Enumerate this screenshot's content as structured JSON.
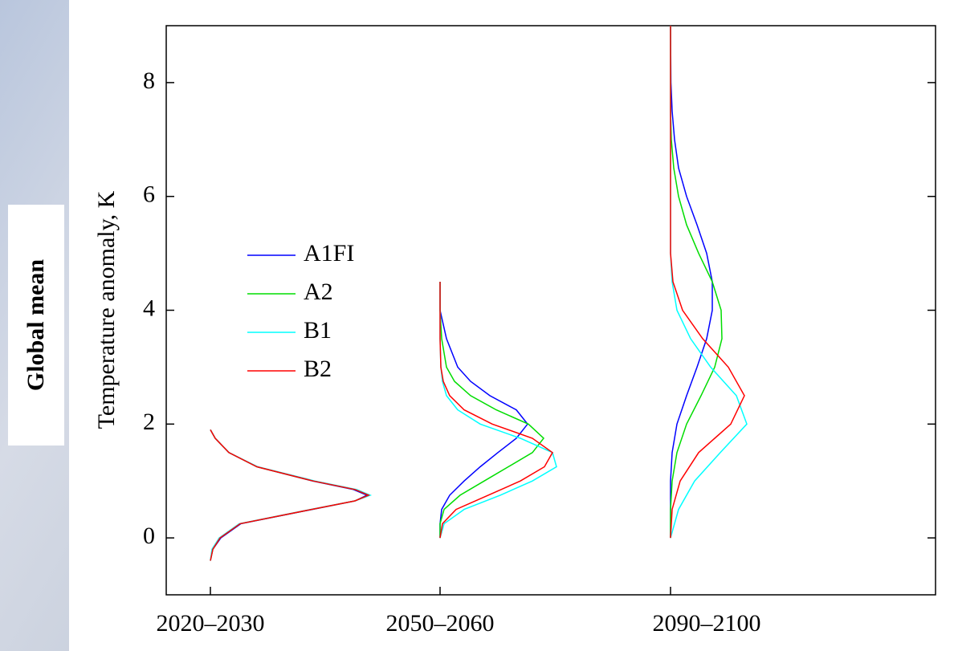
{
  "side_label": "Global mean",
  "chart_data": {
    "type": "density",
    "ylabel": "Temperature anomaly, K",
    "ylim": [
      -1,
      9
    ],
    "yticks": [
      0,
      2,
      4,
      6,
      8
    ],
    "categories": [
      "2020–2030",
      "2050–2060",
      "2090–2100"
    ],
    "legend": "upper left",
    "series": [
      {
        "name": "A1FI",
        "color": "#0000ff"
      },
      {
        "name": "A2",
        "color": "#00dd00"
      },
      {
        "name": "B1",
        "color": "#00ffff"
      },
      {
        "name": "B2",
        "color": "#ff0000"
      }
    ],
    "groups": [
      {
        "y": [
          -0.4,
          -0.2,
          0,
          0.25,
          0.5,
          0.65,
          0.75,
          0.85,
          1.0,
          1.25,
          1.5,
          1.75,
          1.9
        ],
        "values": [
          [
            0,
            0.03,
            0.13,
            0.38,
            1.27,
            1.8,
            1.95,
            1.78,
            1.27,
            0.58,
            0.23,
            0.06,
            0
          ],
          [
            0,
            0.03,
            0.12,
            0.37,
            1.26,
            1.8,
            1.97,
            1.8,
            1.28,
            0.58,
            0.23,
            0.06,
            0
          ],
          [
            0,
            0.02,
            0.11,
            0.36,
            1.25,
            1.8,
            1.99,
            1.82,
            1.3,
            0.59,
            0.23,
            0.06,
            0
          ],
          [
            0,
            0.03,
            0.12,
            0.37,
            1.26,
            1.8,
            1.97,
            1.8,
            1.28,
            0.58,
            0.23,
            0.06,
            0
          ]
        ]
      },
      {
        "y": [
          0,
          0.25,
          0.5,
          0.75,
          1.0,
          1.25,
          1.5,
          1.75,
          2.0,
          2.25,
          2.5,
          2.75,
          3.0,
          3.5,
          4.0,
          4.5
        ],
        "values": [
          [
            0,
            0,
            0.02,
            0.12,
            0.3,
            0.5,
            0.72,
            0.95,
            1.09,
            0.95,
            0.62,
            0.38,
            0.22,
            0.08,
            0,
            0
          ],
          [
            0,
            0,
            0.05,
            0.25,
            0.55,
            0.85,
            1.15,
            1.29,
            1.1,
            0.7,
            0.38,
            0.18,
            0.08,
            0.02,
            0,
            0
          ],
          [
            0,
            0.05,
            0.3,
            0.75,
            1.15,
            1.45,
            1.4,
            1.0,
            0.5,
            0.22,
            0.08,
            0.03,
            0.01,
            0,
            0,
            0
          ],
          [
            0,
            0.03,
            0.2,
            0.6,
            1.0,
            1.3,
            1.4,
            1.15,
            0.65,
            0.3,
            0.12,
            0.04,
            0.01,
            0,
            0,
            0
          ]
        ]
      },
      {
        "y": [
          0,
          0.5,
          1.0,
          1.5,
          2.0,
          2.5,
          3.0,
          3.5,
          4.0,
          4.5,
          5.0,
          5.5,
          6.0,
          6.5,
          7.0,
          7.5,
          8.0,
          9.0
        ],
        "values": [
          [
            0,
            0,
            0,
            0.02,
            0.08,
            0.2,
            0.33,
            0.45,
            0.52,
            0.52,
            0.45,
            0.33,
            0.2,
            0.1,
            0.05,
            0.02,
            0.005,
            0
          ],
          [
            0,
            0,
            0.02,
            0.08,
            0.2,
            0.38,
            0.55,
            0.64,
            0.63,
            0.52,
            0.35,
            0.2,
            0.1,
            0.04,
            0.01,
            0,
            0,
            0
          ],
          [
            0,
            0.1,
            0.3,
            0.62,
            0.95,
            0.82,
            0.5,
            0.25,
            0.08,
            0.02,
            0,
            0,
            0,
            0,
            0,
            0,
            0,
            0
          ],
          [
            0,
            0.02,
            0.12,
            0.35,
            0.75,
            0.92,
            0.72,
            0.4,
            0.15,
            0.03,
            0,
            0,
            0,
            0,
            0,
            0,
            0,
            0
          ]
        ]
      }
    ]
  }
}
